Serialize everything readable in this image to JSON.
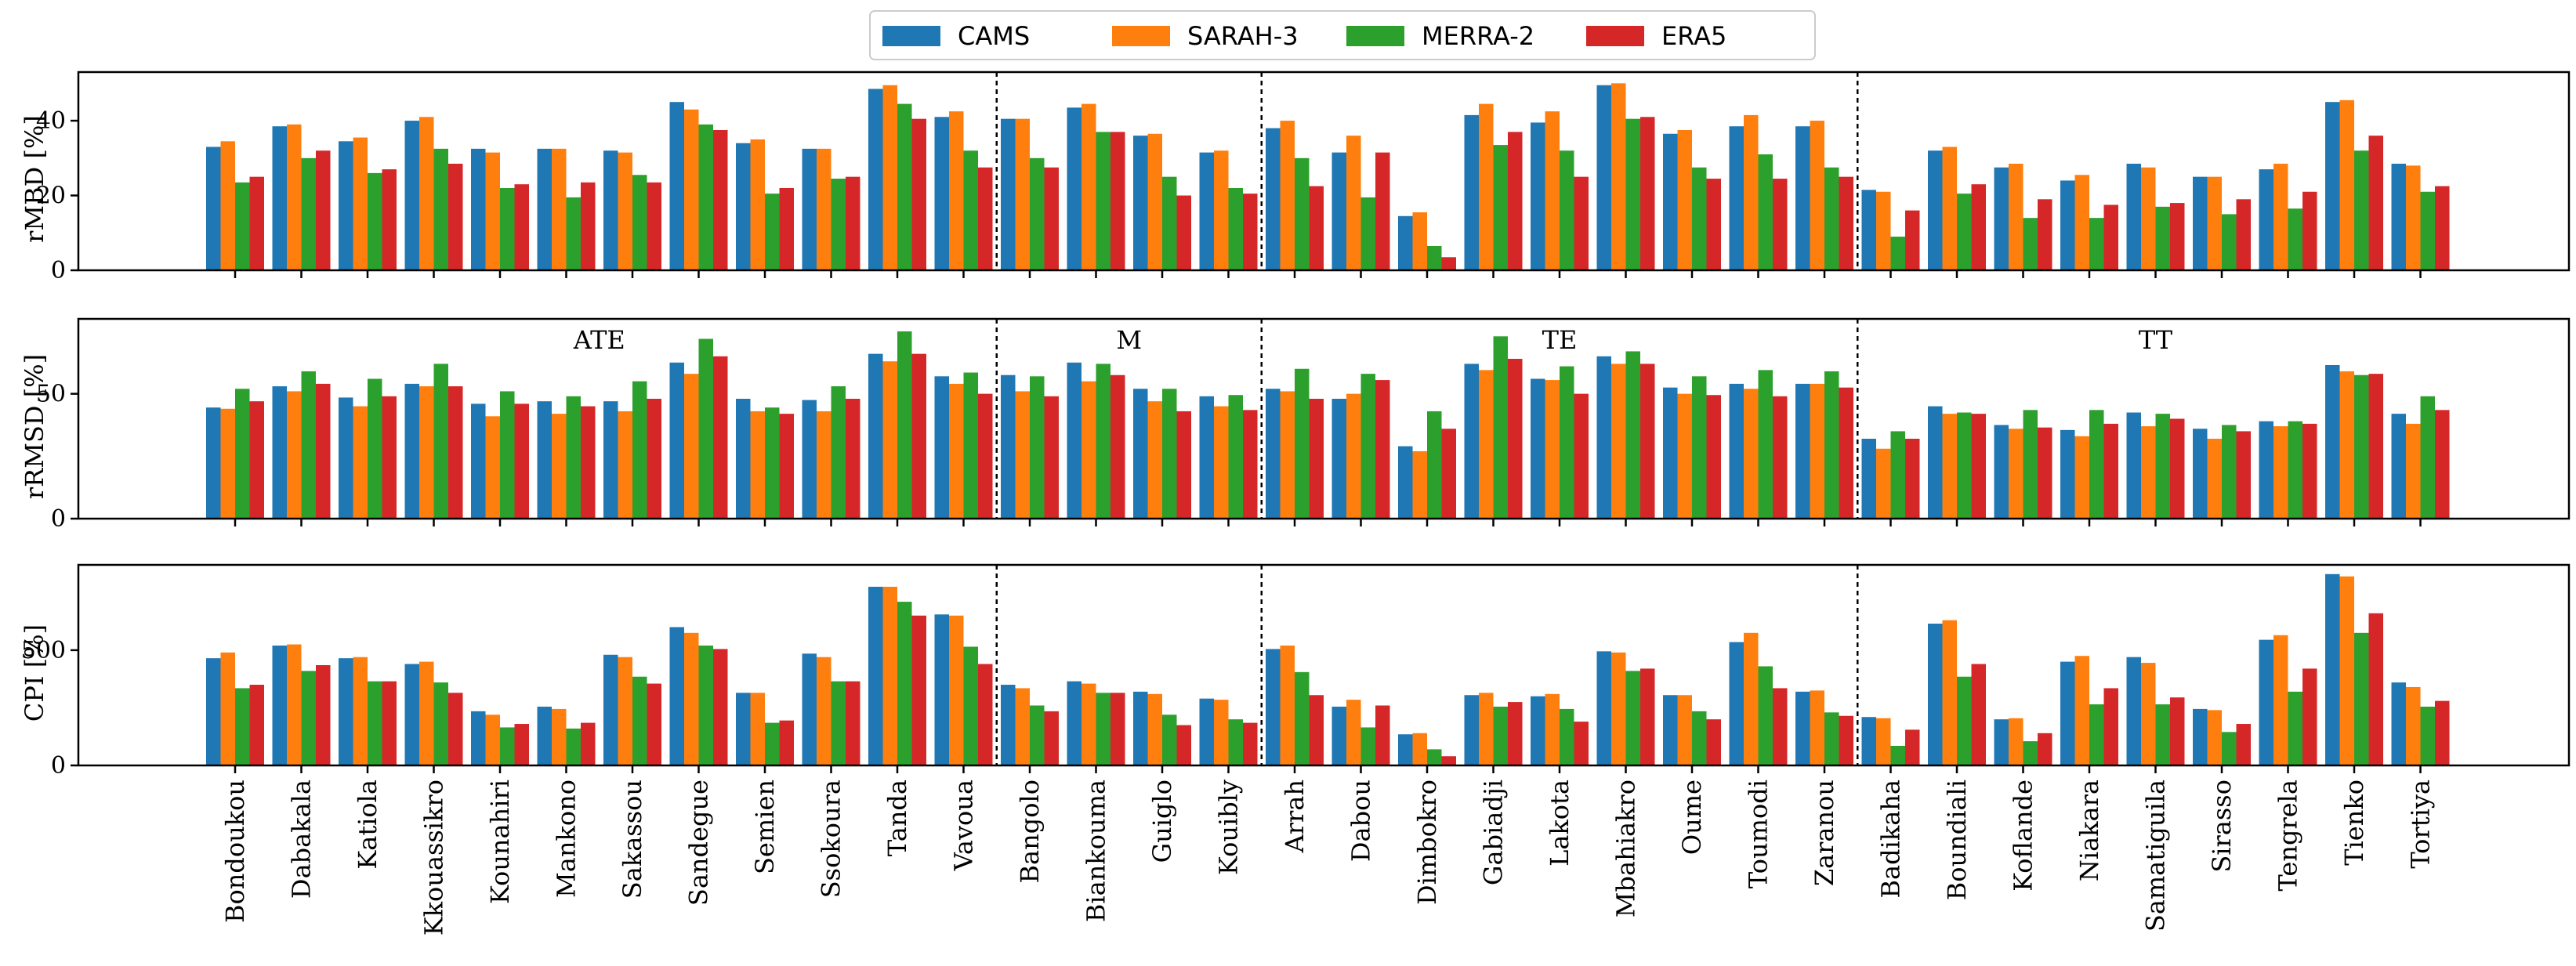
{
  "chart_data": {
    "type": "bar",
    "categories": [
      "Bondoukou",
      "Dabakala",
      "Katiola",
      "Kkouassikro",
      "Kounahiri",
      "Mankono",
      "Sakassou",
      "Sandegue",
      "Semien",
      "Ssokoura",
      "Tanda",
      "Vavoua",
      "Bangolo",
      "Biankouma",
      "Guiglo",
      "Kouibly",
      "Arrah",
      "Dabou",
      "Dimbokro",
      "Gabiadji",
      "Lakota",
      "Mbahiakro",
      "Oume",
      "Toumodi",
      "Zaranou",
      "Badikaha",
      "Boundiali",
      "Koflande",
      "Niakara",
      "Samatiguila",
      "Sirasso",
      "Tengrela",
      "Tienko",
      "Tortiya"
    ],
    "legend": {
      "placement": "top-center",
      "entries": [
        {
          "name": "CAMS",
          "color": "#1f77b4"
        },
        {
          "name": "SARAH-3",
          "color": "#ff7f0e"
        },
        {
          "name": "MERRA-2",
          "color": "#2ca02c"
        },
        {
          "name": "ERA5",
          "color": "#d62728"
        }
      ]
    },
    "groups": [
      {
        "label": "ATE",
        "start": "Bondoukou",
        "end": "Vavoua"
      },
      {
        "label": "M",
        "start": "Bangolo",
        "end": "Kouibly"
      },
      {
        "label": "TE",
        "start": "Arrah",
        "end": "Zaranou"
      },
      {
        "label": "TT",
        "start": "Badikaha",
        "end": "Tortiya"
      }
    ],
    "panels": [
      {
        "ylabel": "rMBD [%]",
        "ylim": [
          0,
          53
        ],
        "yticks": [
          0,
          20,
          40
        ],
        "show_group_labels": false,
        "series": [
          {
            "name": "CAMS",
            "values": [
              33,
              38.5,
              34.5,
              40,
              32.5,
              32.5,
              32,
              45,
              34,
              32.5,
              48.5,
              41,
              40.5,
              43.5,
              36,
              31.5,
              38,
              31.5,
              14.5,
              41.5,
              39.5,
              49.5,
              36.5,
              38.5,
              38.5,
              21.5,
              32,
              27.5,
              24,
              28.5,
              25,
              27,
              45,
              28.5
            ]
          },
          {
            "name": "SARAH-3",
            "values": [
              34.5,
              39,
              35.5,
              41,
              31.5,
              32.5,
              31.5,
              43,
              35,
              32.5,
              49.5,
              42.5,
              40.5,
              44.5,
              36.5,
              32,
              40,
              36,
              15.5,
              44.5,
              42.5,
              50,
              37.5,
              41.5,
              40,
              21,
              33,
              28.5,
              25.5,
              27.5,
              25,
              28.5,
              45.5,
              28
            ]
          },
          {
            "name": "MERRA-2",
            "values": [
              23.5,
              30,
              26,
              32.5,
              22,
              19.5,
              25.5,
              39,
              20.5,
              24.5,
              44.5,
              32,
              30,
              37,
              25,
              22,
              30,
              19.5,
              6.5,
              33.5,
              32,
              40.5,
              27.5,
              31,
              27.5,
              9,
              20.5,
              14,
              14,
              17,
              15,
              16.5,
              32,
              21
            ]
          },
          {
            "name": "ERA5",
            "values": [
              25,
              32,
              27,
              28.5,
              23,
              23.5,
              23.5,
              37.5,
              22,
              25,
              40.5,
              27.5,
              27.5,
              37,
              20,
              20.5,
              22.5,
              31.5,
              3.5,
              37,
              25,
              41,
              24.5,
              24.5,
              25,
              16,
              23,
              19,
              17.5,
              18,
              19,
              21,
              36,
              22.5
            ]
          }
        ]
      },
      {
        "ylabel": "rRMSD [%]",
        "ylim": [
          0,
          80
        ],
        "yticks": [
          0,
          50
        ],
        "show_group_labels": true,
        "series": [
          {
            "name": "CAMS",
            "values": [
              44.5,
              53,
              48.5,
              54,
              46,
              47,
              47,
              62.5,
              48,
              47.5,
              66,
              57,
              57.5,
              62.5,
              52,
              49,
              52,
              48,
              29,
              62,
              56,
              65,
              52.5,
              54,
              54,
              32,
              45,
              37.5,
              35.5,
              42.5,
              36,
              39,
              61.5,
              42
            ]
          },
          {
            "name": "SARAH-3",
            "values": [
              44,
              51,
              45,
              53,
              41,
              42,
              43,
              58,
              43,
              43,
              63,
              54,
              51,
              55,
              47,
              45,
              51,
              50,
              27,
              59.5,
              55.5,
              62,
              50,
              52,
              54,
              28,
              42,
              36,
              33,
              37,
              32,
              37,
              59,
              38
            ]
          },
          {
            "name": "MERRA-2",
            "values": [
              52,
              59,
              56,
              62,
              51,
              49,
              55,
              72,
              44.5,
              53,
              75,
              58.5,
              57,
              62,
              52,
              49.5,
              60,
              58,
              43,
              73,
              61,
              67,
              57,
              59.5,
              59,
              35,
              42.5,
              43.5,
              43.5,
              42,
              37.5,
              39,
              57.5,
              49
            ]
          },
          {
            "name": "ERA5",
            "values": [
              47,
              54,
              49,
              53,
              46,
              45,
              48,
              65,
              42,
              48,
              66,
              50,
              49,
              57.5,
              43,
              43.5,
              48,
              55.5,
              36,
              64,
              50,
              62,
              49.5,
              49,
              52.5,
              32,
              42,
              36.5,
              38,
              40,
              35,
              38,
              58,
              43.5
            ]
          }
        ]
      },
      {
        "ylabel": "CPI [%]",
        "ylim": [
          0,
          870
        ],
        "yticks": [
          0,
          500
        ],
        "show_group_labels": false,
        "series": [
          {
            "name": "CAMS",
            "values": [
              465,
              520,
              465,
              440,
              235,
              255,
              480,
              600,
              315,
              485,
              775,
              655,
              350,
              365,
              320,
              290,
              505,
              255,
              135,
              305,
              300,
              495,
              305,
              535,
              320,
              210,
              615,
              200,
              450,
              470,
              245,
              545,
              830,
              360
            ]
          },
          {
            "name": "SARAH-3",
            "values": [
              490,
              525,
              470,
              450,
              220,
              245,
              470,
              575,
              315,
              470,
              775,
              650,
              335,
              355,
              310,
              285,
              520,
              285,
              140,
              315,
              310,
              490,
              305,
              575,
              325,
              205,
              630,
              205,
              475,
              445,
              240,
              565,
              820,
              340
            ]
          },
          {
            "name": "MERRA-2",
            "values": [
              335,
              410,
              365,
              360,
              165,
              160,
              385,
              520,
              185,
              365,
              710,
              515,
              260,
              315,
              220,
              200,
              405,
              165,
              70,
              255,
              245,
              410,
              235,
              430,
              230,
              85,
              385,
              105,
              265,
              265,
              145,
              320,
              575,
              255
            ]
          },
          {
            "name": "ERA5",
            "values": [
              350,
              435,
              365,
              315,
              180,
              185,
              355,
              505,
              195,
              365,
              650,
              440,
              235,
              315,
              175,
              185,
              305,
              260,
              40,
              275,
              190,
              420,
              200,
              335,
              215,
              155,
              440,
              140,
              335,
              295,
              180,
              420,
              660,
              280
            ]
          }
        ]
      }
    ]
  }
}
